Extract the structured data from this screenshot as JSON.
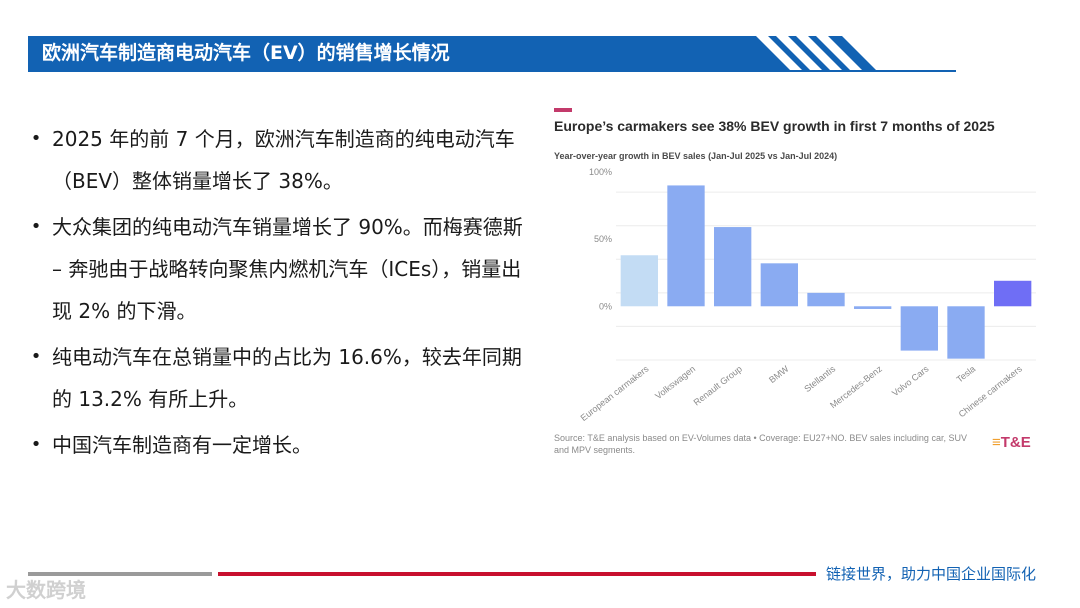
{
  "header": {
    "title": "欧洲汽车制造商电动汽车（EV）的销售增长情况",
    "accent_color": "#1262b3"
  },
  "bullets": [
    "2025 年的前 7 个月，欧洲汽车制造商的纯电动汽车（BEV）整体销量增长了 38%。",
    "大众集团的纯电动汽车销量增长了 90%。而梅赛德斯 – 奔驰由于战略转向聚焦内燃机汽车（ICEs），销量出现 2% 的下滑。",
    "纯电动汽车在总销量中的占比为 16.6%，较去年同期的 13.2% 有所上升。",
    "中国汽车制造商有一定增长。"
  ],
  "chart_data": {
    "type": "bar",
    "title": "Europe’s carmakers see 38% BEV growth in first 7 months of 2025",
    "subtitle": "Year-over-year growth in BEV sales (Jan-Jul 2025 vs Jan-Jul 2024)",
    "categories": [
      "European carmakers",
      "Volkswagen",
      "Renault Group",
      "BMW",
      "Stellantis",
      "Mercedes-Benz",
      "Volvo Cars",
      "Tesla",
      "Chinese carmakers"
    ],
    "values": [
      38,
      90,
      59,
      32,
      10,
      -2,
      -33,
      -39,
      19
    ],
    "bar_colors": [
      "#c3dcf4",
      "#8aabf2",
      "#8aabf2",
      "#8aabf2",
      "#8aabf2",
      "#8aabf2",
      "#8aabf2",
      "#8aabf2",
      "#6f6ef5"
    ],
    "yticks": [
      "100%",
      "50%",
      "0%"
    ],
    "ytick_values": [
      100,
      50,
      0
    ],
    "ylim": [
      -40,
      100
    ],
    "grid": true,
    "source": "Source: T&E analysis based on EV-Volumes data • Coverage: EU27+NO. BEV sales including car, SUV and MPV segments.",
    "brand": "T&E"
  },
  "footer": {
    "slogan": "链接世界，助力中国企业国际化",
    "watermark": "大数跨境"
  }
}
